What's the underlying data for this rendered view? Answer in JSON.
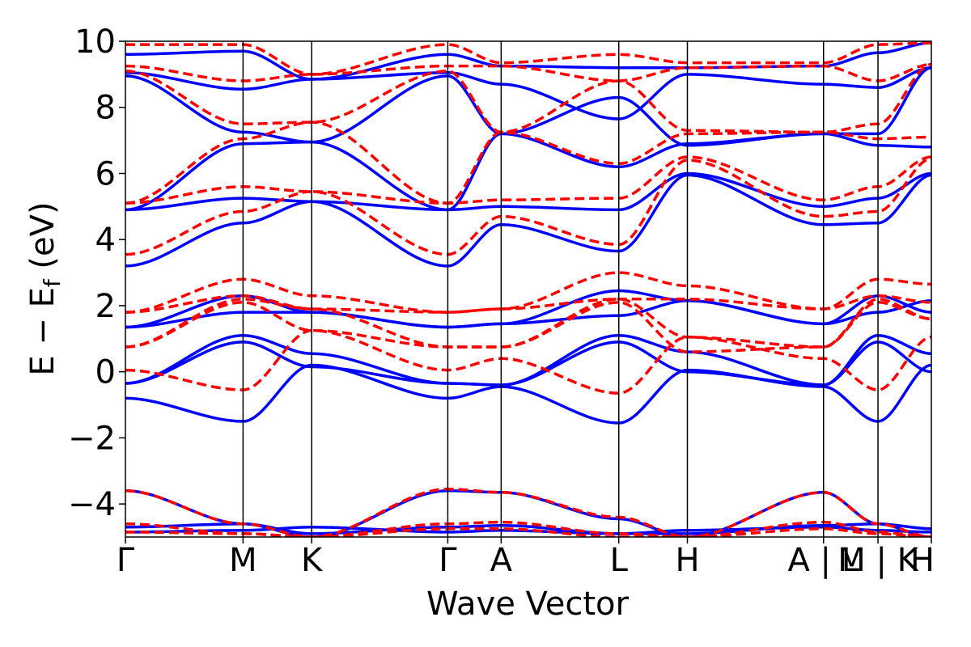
{
  "chart_data": {
    "type": "line",
    "title": "",
    "xlabel": "Wave Vector",
    "ylabel_main": "E − E",
    "ylabel_sub": "f",
    "ylabel_unit": " (eV)",
    "ylim": [
      -5,
      10
    ],
    "yticks": [
      -4,
      -2,
      0,
      2,
      4,
      6,
      8,
      10
    ],
    "ytick_labels": [
      "−4",
      "−2",
      "0",
      "2",
      "4",
      "6",
      "8",
      "10"
    ],
    "xlim": [
      0,
      7.4
    ],
    "kpoints": [
      {
        "label": "Γ",
        "x": 0.0
      },
      {
        "label": "M",
        "x": 1.08
      },
      {
        "label": "K",
        "x": 1.71
      },
      {
        "label": "Γ",
        "x": 2.96
      },
      {
        "label": "A",
        "x": 3.45
      },
      {
        "label": "L",
        "x": 4.53
      },
      {
        "label": "H",
        "x": 5.16
      },
      {
        "label": "A | L",
        "x": 6.41
      },
      {
        "label": "M | K",
        "x": 6.91
      },
      {
        "label": "H",
        "x": 7.4
      }
    ],
    "segments": [
      [
        0.0,
        1.08
      ],
      [
        1.08,
        1.71
      ],
      [
        1.71,
        2.96
      ],
      [
        2.96,
        3.45
      ],
      [
        3.45,
        4.53
      ],
      [
        4.53,
        5.16
      ],
      [
        5.16,
        6.41
      ],
      [
        6.41,
        6.91
      ],
      [
        6.91,
        7.4
      ]
    ],
    "series": [
      {
        "color": "#0000ff",
        "dash": "solid",
        "bands": [
          [
            -4.85,
            -4.8,
            -4.7,
            -4.85,
            -4.8,
            -4.9,
            -4.8,
            -4.7,
            -4.8,
            -4.85
          ],
          [
            -4.7,
            -4.6,
            -4.9,
            -4.7,
            -4.65,
            -4.9,
            -4.9,
            -4.65,
            -4.6,
            -4.75
          ],
          [
            -3.6,
            -4.6,
            -5.0,
            -3.6,
            -3.65,
            -4.45,
            -5.0,
            -3.65,
            -4.6,
            -5.0
          ],
          [
            -0.8,
            -1.5,
            0.2,
            -0.8,
            -0.45,
            -1.55,
            0.05,
            -0.45,
            -1.5,
            0.2
          ],
          [
            -0.35,
            0.9,
            0.15,
            -0.35,
            -0.4,
            0.9,
            0.0,
            -0.4,
            0.9,
            0.0
          ],
          [
            -0.35,
            1.1,
            0.55,
            -0.35,
            -0.4,
            1.1,
            0.6,
            -0.4,
            1.1,
            0.55
          ],
          [
            1.35,
            1.8,
            1.8,
            1.35,
            1.45,
            1.7,
            2.15,
            1.45,
            1.8,
            2.15
          ],
          [
            1.35,
            2.3,
            1.8,
            1.35,
            1.45,
            2.45,
            2.15,
            1.45,
            2.3,
            1.8
          ],
          [
            3.2,
            4.5,
            5.15,
            3.2,
            4.45,
            3.65,
            5.95,
            4.45,
            4.5,
            5.95
          ],
          [
            4.9,
            5.25,
            5.15,
            4.9,
            5.0,
            4.9,
            6.0,
            5.0,
            5.25,
            6.0
          ],
          [
            4.9,
            6.9,
            6.95,
            4.9,
            7.2,
            6.2,
            6.9,
            7.2,
            6.85,
            6.8
          ],
          [
            8.95,
            7.25,
            6.95,
            8.95,
            7.2,
            8.3,
            6.85,
            7.2,
            7.2,
            9.2
          ],
          [
            9.05,
            8.55,
            8.85,
            9.05,
            8.7,
            7.65,
            9.0,
            8.7,
            8.6,
            9.2
          ],
          [
            9.6,
            9.7,
            8.85,
            9.6,
            9.25,
            9.2,
            9.2,
            9.25,
            9.65,
            9.95
          ]
        ]
      },
      {
        "color": "#ff0000",
        "dash": "dashed",
        "bands": [
          [
            -4.85,
            -4.9,
            -5.0,
            -4.75,
            -4.75,
            -5.0,
            -5.0,
            -4.75,
            -4.9,
            -5.0
          ],
          [
            -4.6,
            -4.9,
            -5.0,
            -4.6,
            -4.55,
            -4.9,
            -5.0,
            -4.55,
            -4.85,
            -5.0
          ],
          [
            -3.6,
            -4.6,
            -5.0,
            -3.55,
            -3.65,
            -4.4,
            -5.0,
            -3.65,
            -4.6,
            -5.0
          ],
          [
            0.05,
            -0.55,
            1.25,
            0.05,
            0.4,
            -0.65,
            1.05,
            0.4,
            -0.55,
            1.05
          ],
          [
            0.75,
            2.1,
            1.25,
            0.75,
            0.75,
            2.1,
            0.6,
            0.75,
            2.1,
            1.6
          ],
          [
            0.75,
            2.2,
            1.9,
            0.75,
            0.75,
            2.2,
            1.05,
            0.75,
            2.2,
            1.6
          ],
          [
            1.8,
            2.3,
            1.9,
            1.8,
            1.9,
            2.2,
            2.2,
            1.9,
            2.3,
            2.1
          ],
          [
            1.8,
            2.8,
            2.3,
            1.8,
            1.9,
            3.0,
            2.6,
            1.9,
            2.8,
            2.65
          ],
          [
            3.55,
            4.85,
            5.45,
            3.55,
            4.7,
            3.85,
            6.4,
            4.7,
            4.85,
            6.45
          ],
          [
            5.1,
            5.6,
            5.45,
            5.1,
            5.2,
            5.25,
            6.5,
            5.2,
            5.6,
            6.5
          ],
          [
            5.1,
            7.05,
            7.55,
            5.1,
            7.25,
            6.3,
            7.2,
            7.25,
            7.05,
            7.1
          ],
          [
            9.1,
            7.5,
            7.55,
            9.1,
            7.25,
            8.8,
            7.3,
            7.25,
            7.5,
            9.3
          ],
          [
            9.25,
            8.8,
            9.0,
            9.25,
            9.25,
            8.8,
            9.2,
            9.25,
            8.8,
            9.3
          ],
          [
            9.9,
            9.9,
            9.0,
            9.9,
            9.35,
            9.6,
            9.35,
            9.35,
            9.9,
            9.95
          ]
        ]
      }
    ]
  }
}
